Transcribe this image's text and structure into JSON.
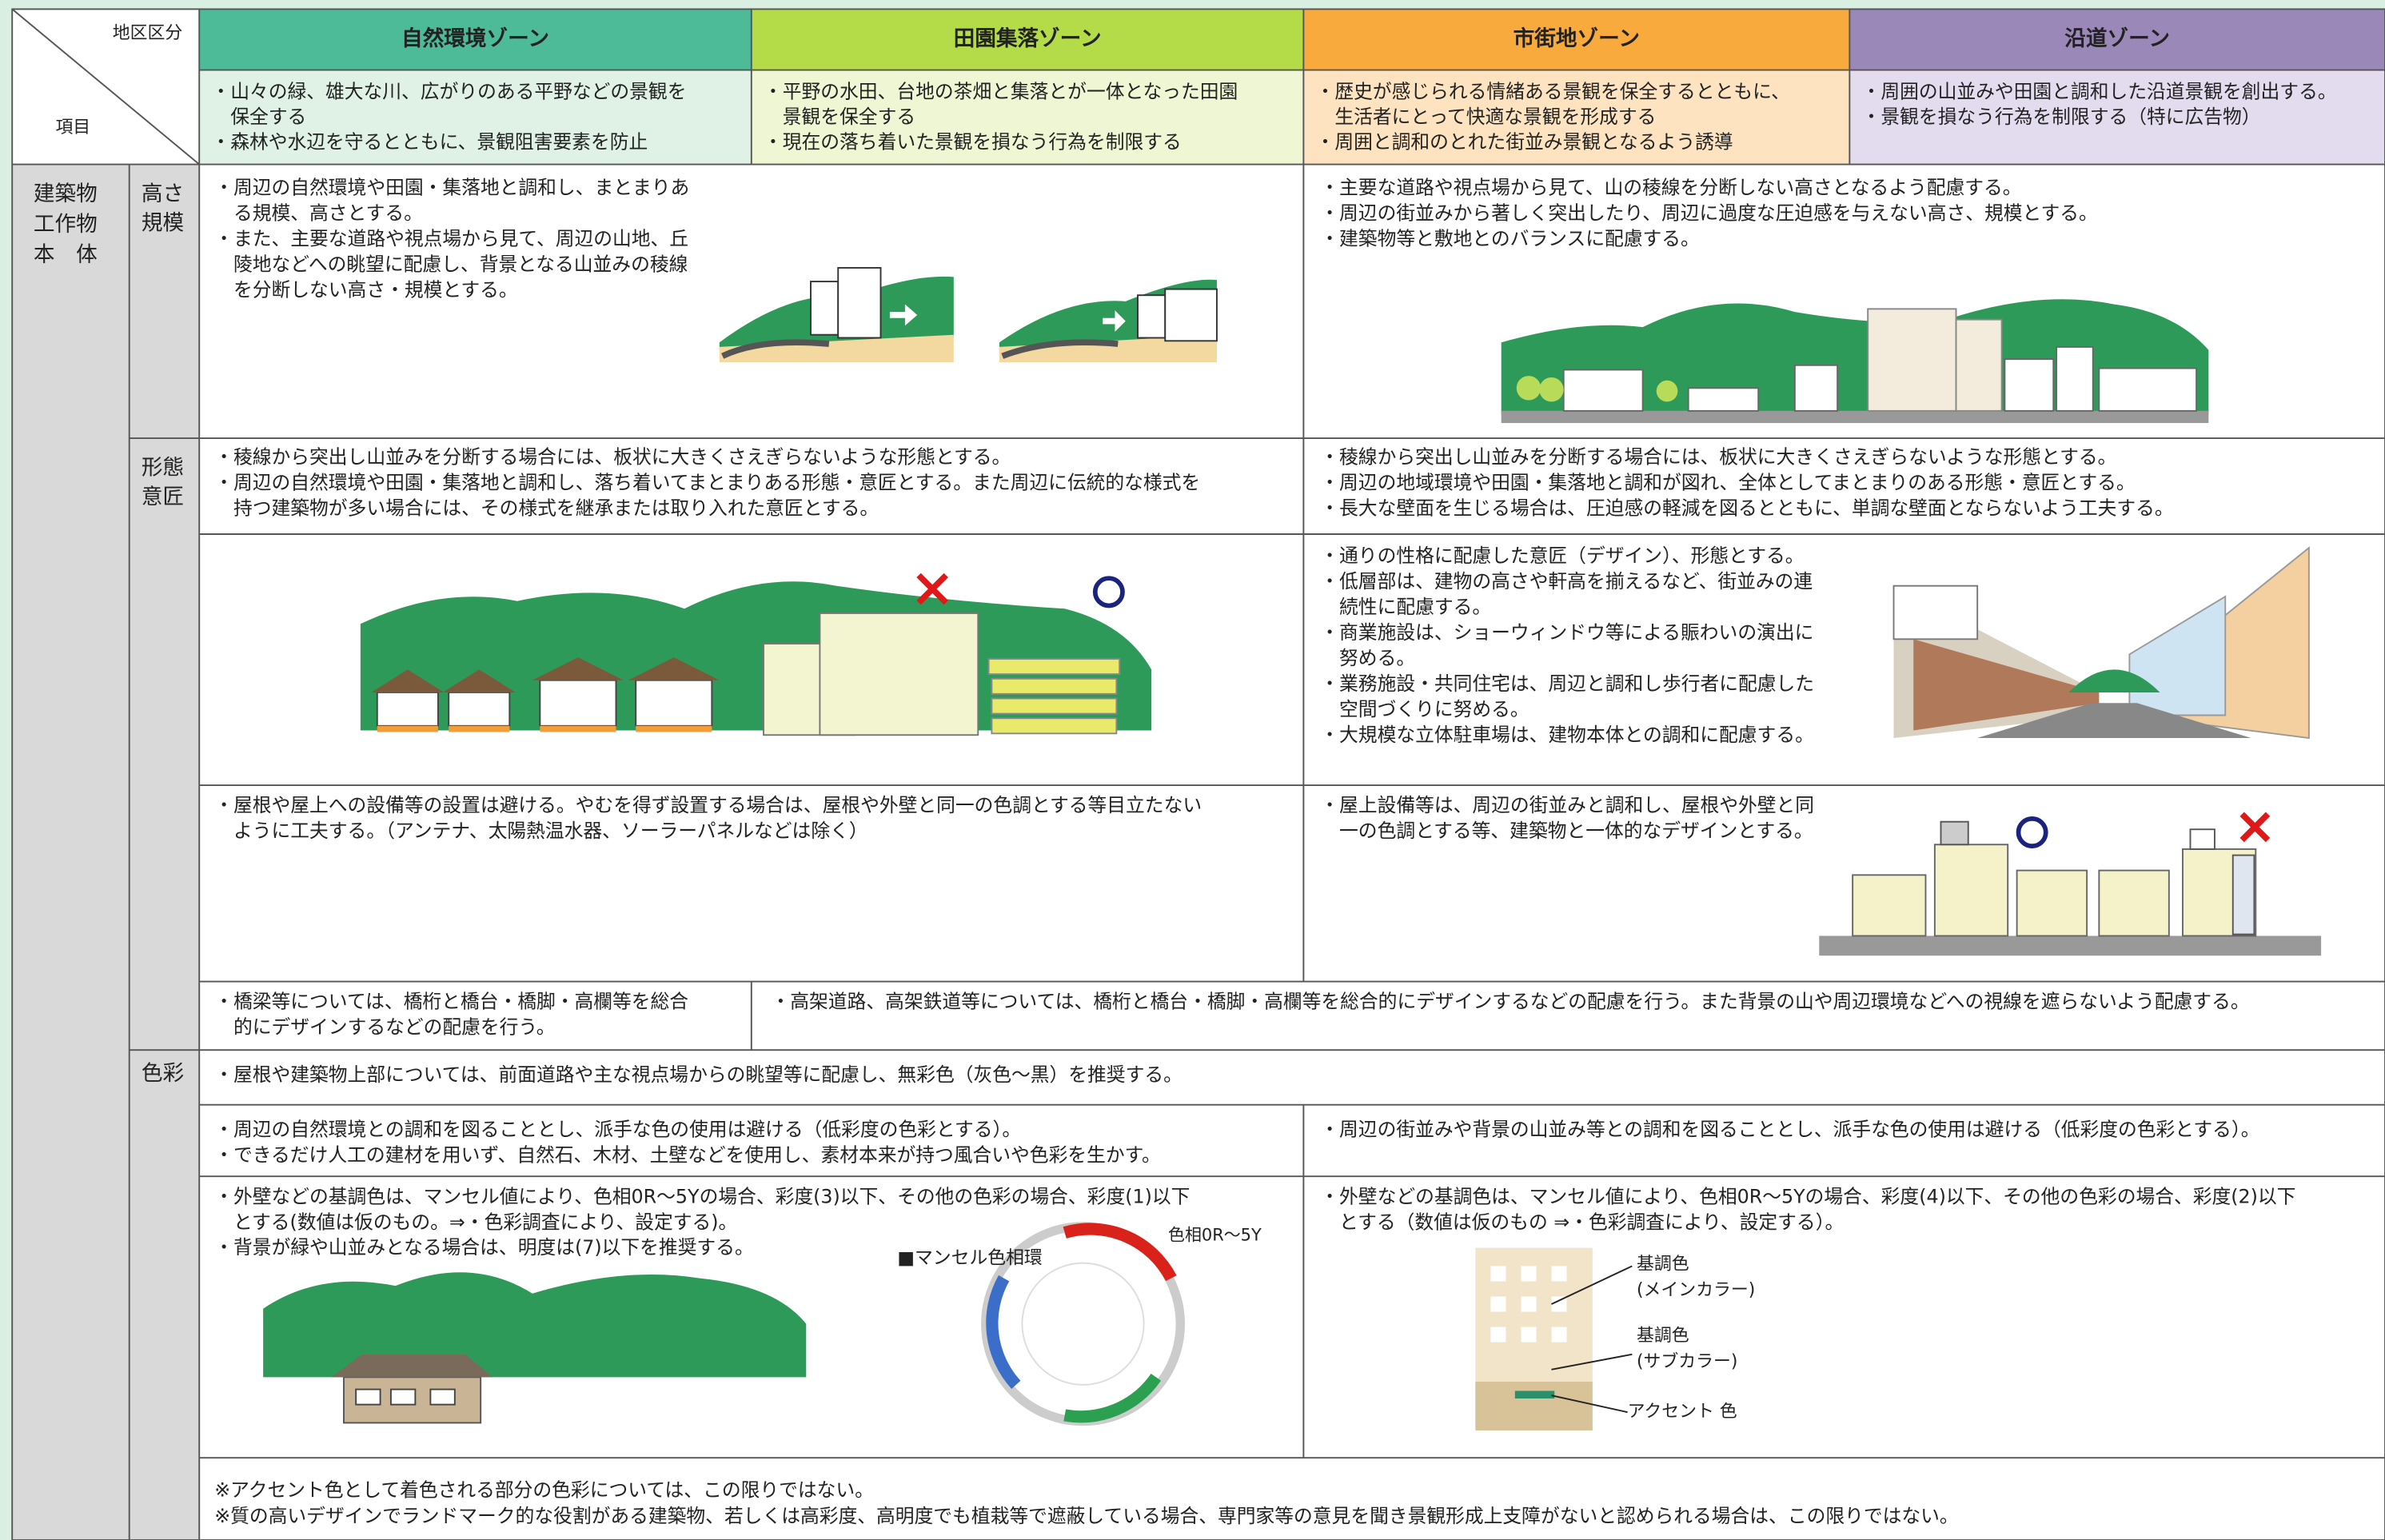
{
  "header": {
    "corner_top": "地区区分",
    "corner_bottom": "項目",
    "zones": [
      {
        "name": "自然環境ゾーン",
        "goals": [
          "・山々の緑、雄大な川、広がりのある平野などの景観を",
          "　保全する",
          "・森林や水辺を守るとともに、景観阻害要素を防止"
        ]
      },
      {
        "name": "田園集落ゾーン",
        "goals": [
          "・平野の水田、台地の茶畑と集落とが一体となった田園",
          "　景観を保全する",
          "・現在の落ち着いた景観を損なう行為を制限する"
        ]
      },
      {
        "name": "市街地ゾーン",
        "goals": [
          "・歴史が感じられる情緒ある景観を保全するとともに、",
          "　生活者にとって快適な景観を形成する",
          "・周囲と調和のとれた街並み景観となるよう誘導"
        ]
      },
      {
        "name": "沿道ゾーン",
        "goals": [
          "・周囲の山並みや田園と調和した沿道景観を創出する。",
          "・景観を損なう行為を制限する（特に広告物）"
        ]
      }
    ]
  },
  "category": [
    "建築物",
    "工作物",
    "本　体"
  ],
  "height": {
    "label": [
      "高さ",
      "規模"
    ],
    "left": [
      "・周辺の自然環境や田園・集落地と調和し、まとまりあ",
      "　る規模、高さとする。",
      "・また、主要な道路や視点場から見て、周辺の山地、丘",
      "　陵地などへの眺望に配慮し、背景となる山並みの稜線",
      "　を分断しない高さ・規模とする。"
    ],
    "right": [
      "・主要な道路や視点場から見て、山の稜線を分断しない高さとなるよう配慮する。",
      "・周辺の街並みから著しく突出したり、周辺に過度な圧迫感を与えない高さ、規模とする。",
      "・建築物等と敷地とのバランスに配慮する。"
    ]
  },
  "form": {
    "label": [
      "形態",
      "意匠"
    ],
    "left": [
      "・稜線から突出し山並みを分断する場合には、板状に大きくさえぎらないような形態とする。",
      "・周辺の自然環境や田園・集落地と調和し、落ち着いてまとまりある形態・意匠とする。また周辺に伝統的な様式を",
      "　持つ建築物が多い場合には、その様式を継承または取り入れた意匠とする。"
    ],
    "right": [
      "・稜線から突出し山並みを分断する場合には、板状に大きくさえぎらないような形態とする。",
      "・周辺の地域環境や田園・集落地と調和が図れ、全体としてまとまりのある形態・意匠とする。",
      "・長大な壁面を生じる場合は、圧迫感の軽減を図るとともに、単調な壁面とならないよう工夫する。"
    ],
    "street": [
      "・通りの性格に配慮した意匠（デザイン）、形態とする。",
      "・低層部は、建物の高さや軒高を揃えるなど、街並みの連",
      "　続性に配慮する。",
      "・商業施設は、ショーウィンドウ等による賑わいの演出に",
      "　努める。",
      "・業務施設・共同住宅は、周辺と調和し歩行者に配慮した",
      "　空間づくりに努める。",
      "・大規模な立体駐車場は、建物本体との調和に配慮する。"
    ],
    "roof_left": [
      "・屋根や屋上への設備等の設置は避ける。やむを得ず設置する場合は、屋根や外壁と同一の色調とする等目立たない",
      "　ように工夫する。（アンテナ、太陽熱温水器、ソーラーパネルなどは除く）"
    ],
    "roof_right": [
      "・屋上設備等は、周辺の街並みと調和し、屋根や外壁と同",
      "　一の色調とする等、建築物と一体的なデザインとする。"
    ],
    "bridge_left": [
      "・橋梁等については、橋桁と橋台・橋脚・高欄等を総合",
      "　的にデザインするなどの配慮を行う。"
    ],
    "bridge_right": [
      "・高架道路、高架鉄道等については、橋桁と橋台・橋脚・高欄等を総合的にデザインするなどの配慮を行う。また背景の山や周辺環境などへの視線を遮らないよう配慮する。"
    ]
  },
  "color": {
    "label": [
      "色彩"
    ],
    "roof": [
      "・屋根や建築物上部については、前面道路や主な視点場からの眺望等に配慮し、無彩色（灰色～黒）を推奨する。"
    ],
    "left1": [
      "・周辺の自然環境との調和を図ることとし、派手な色の使用は避ける（低彩度の色彩とする）。",
      "・できるだけ人工の建材を用いず、自然石、木材、土壁などを使用し、素材本来が持つ風合いや色彩を生かす。"
    ],
    "right1": [
      "・周辺の街並みや背景の山並み等との調和を図ることとし、派手な色の使用は避ける（低彩度の色彩とする）。"
    ],
    "left2": [
      "・外壁などの基調色は、マンセル値により、色相0R～5Yの場合、彩度(3)以下、その他の色彩の場合、彩度(1)以下",
      "　とする(数値は仮のもの。⇒・色彩調査により、設定する)。",
      "・背景が緑や山並みとなる場合は、明度は(7)以下を推奨する。"
    ],
    "right2": [
      "・外壁などの基調色は、マンセル値により、色相0R～5Yの場合、彩度(4)以下、その他の色彩の場合、彩度(2)以下",
      "　とする（数値は仮のもの ⇒・色彩調査により、設定する）。"
    ],
    "wheel_title": "■マンセル色相環",
    "wheel_range": "色相0R～5Y",
    "labels": [
      "基調色",
      "(メインカラー)",
      "基調色",
      "(サブカラー)",
      "アクセント 色"
    ]
  },
  "notes": [
    "※アクセント色として着色される部分の色彩については、この限りではない。",
    "※質の高いデザインでランドマーク的な役割がある建築物、若しくは高彩度、高明度でも植栽等で遮蔽している場合、専門家等の意見を聞き景観形成上支障がないと認められる場合は、この限りではない。"
  ]
}
